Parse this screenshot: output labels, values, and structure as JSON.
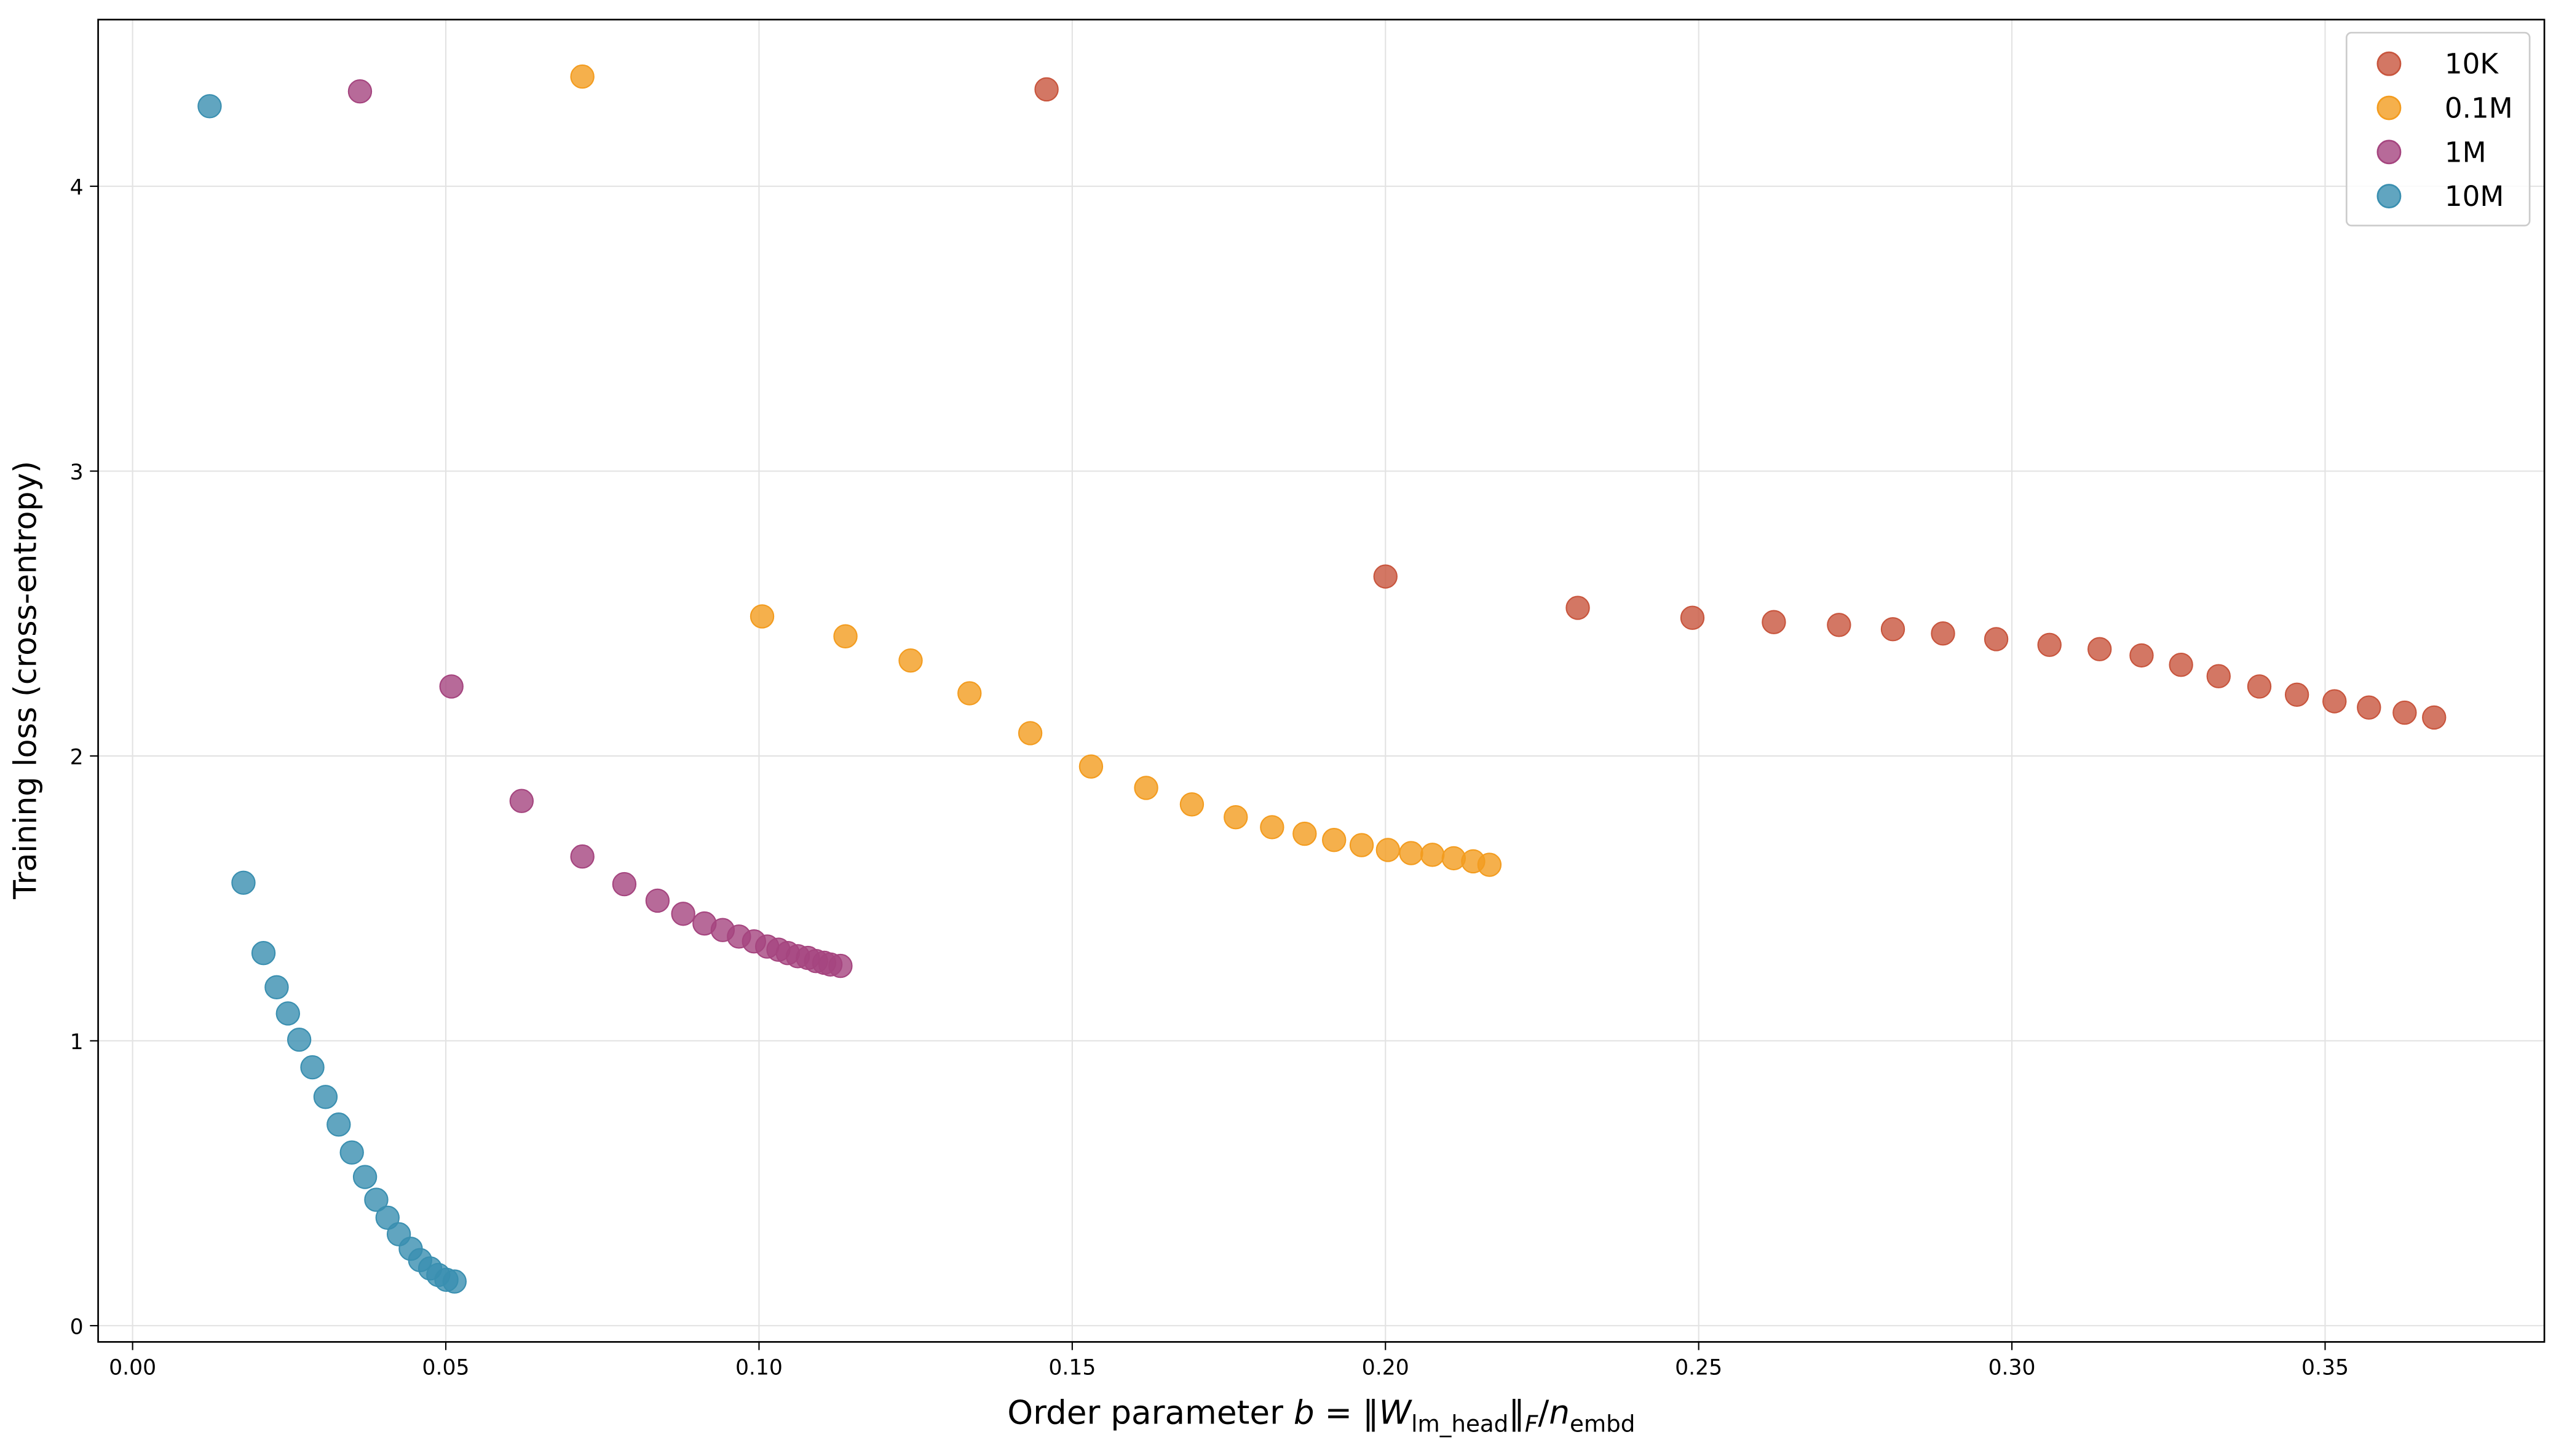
{
  "chart_data": {
    "type": "scatter",
    "xlabel": [
      "Order parameter ",
      "b",
      " = ‖",
      "W",
      "lm_head",
      "‖",
      "F",
      "/",
      "n",
      "embd"
    ],
    "ylabel": "Training loss (cross-entropy)",
    "xlim": [
      -0.0055,
      0.385
    ],
    "ylim": [
      -0.057,
      4.585
    ],
    "xticks": [
      {
        "value": 0,
        "label": "0.00"
      },
      0.05,
      {
        "value": 0.1,
        "label": "0.10"
      },
      0.15,
      {
        "value": 0.2,
        "label": "0.20"
      },
      0.25,
      {
        "value": 0.3,
        "label": "0.30"
      },
      0.35
    ],
    "yticks": [
      0,
      1,
      2,
      3,
      4
    ],
    "grid": true,
    "legend": "upper right",
    "series": [
      {
        "name": "10K",
        "color": "#c8553d",
        "x": [
          0.1459,
          0.2,
          0.2307,
          0.249,
          0.262,
          0.2724,
          0.281,
          0.289,
          0.2975,
          0.306,
          0.314,
          0.3207,
          0.327,
          0.333,
          0.3395,
          0.3455,
          0.3515,
          0.357,
          0.3627,
          0.3674
        ],
        "values": [
          4.34,
          2.63,
          2.52,
          2.485,
          2.47,
          2.46,
          2.445,
          2.43,
          2.41,
          2.39,
          2.375,
          2.353,
          2.32,
          2.28,
          2.244,
          2.215,
          2.192,
          2.17,
          2.152,
          2.135
        ]
      },
      {
        "name": "0.1M",
        "color": "#f39c1f",
        "x": [
          0.0718,
          0.1005,
          0.1138,
          0.1242,
          0.1336,
          0.1433,
          0.153,
          0.1618,
          0.1691,
          0.1761,
          0.1819,
          0.1871,
          0.1918,
          0.1962,
          0.2004,
          0.2041,
          0.2075,
          0.2109,
          0.214,
          0.2166
        ],
        "values": [
          4.385,
          2.49,
          2.42,
          2.335,
          2.22,
          2.08,
          1.963,
          1.888,
          1.83,
          1.785,
          1.75,
          1.727,
          1.705,
          1.687,
          1.67,
          1.659,
          1.653,
          1.641,
          1.63,
          1.618
        ]
      },
      {
        "name": "1M",
        "color": "#a5457f",
        "x": [
          0.0363,
          0.0509,
          0.0621,
          0.0718,
          0.0785,
          0.0838,
          0.0879,
          0.0913,
          0.0942,
          0.0968,
          0.0992,
          0.1013,
          0.1031,
          0.1046,
          0.1062,
          0.1078,
          0.1091,
          0.1104,
          0.1114,
          0.113
        ],
        "values": [
          4.333,
          2.244,
          1.842,
          1.647,
          1.55,
          1.492,
          1.446,
          1.412,
          1.389,
          1.366,
          1.349,
          1.331,
          1.32,
          1.308,
          1.297,
          1.291,
          1.28,
          1.274,
          1.268,
          1.263
        ]
      },
      {
        "name": "10M",
        "color": "#3a8fb0",
        "x": [
          0.0123,
          0.0177,
          0.0209,
          0.023,
          0.0248,
          0.0266,
          0.0287,
          0.0308,
          0.0329,
          0.035,
          0.0371,
          0.0389,
          0.0407,
          0.0425,
          0.0444,
          0.0459,
          0.0475,
          0.0488,
          0.0501,
          0.0514
        ],
        "values": [
          4.281,
          1.555,
          1.308,
          1.188,
          1.096,
          1.004,
          0.907,
          0.803,
          0.706,
          0.608,
          0.522,
          0.442,
          0.379,
          0.321,
          0.27,
          0.23,
          0.201,
          0.178,
          0.161,
          0.155
        ]
      }
    ]
  }
}
